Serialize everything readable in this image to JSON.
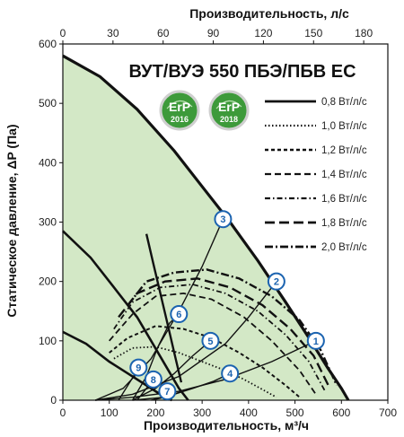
{
  "chart_data": {
    "type": "line",
    "title": "ВУТ/ВУЭ 550 ПБЭ/ПБВ ЕС",
    "xlabel": "Производительность, м³/ч",
    "ylabel": "Статическое давление, ΔP (Па)",
    "x2label": "Производительность, л/с",
    "xlim": [
      0,
      700
    ],
    "ylim": [
      0,
      600
    ],
    "x2lim": [
      0,
      194.44
    ],
    "xticks": [
      "0",
      "100",
      "200",
      "300",
      "400",
      "500",
      "600",
      "700"
    ],
    "yticks": [
      "0",
      "100",
      "200",
      "300",
      "400",
      "500",
      "600"
    ],
    "x2ticks": [
      "0",
      "30",
      "60",
      "90",
      "120",
      "150",
      "180"
    ],
    "grid": false,
    "badges": [
      {
        "label": "ErP",
        "year": "2016"
      },
      {
        "label": "ErP",
        "year": "2018"
      }
    ],
    "legend_position": "top-right",
    "series": [
      {
        "name": "0,8 Вт/л/с",
        "style": "solid",
        "x": [
          180,
          195,
          210,
          225,
          240,
          255
        ],
        "y": [
          280,
          230,
          180,
          130,
          80,
          30
        ]
      },
      {
        "name": "1,0 Вт/л/с",
        "style": "dotted",
        "x": [
          110,
          150,
          200,
          250,
          300,
          350,
          390,
          430,
          460
        ],
        "y": [
          70,
          88,
          90,
          80,
          65,
          50,
          35,
          18,
          5
        ]
      },
      {
        "name": "1,2 Вт/л/с",
        "style": "dashed",
        "x": [
          100,
          140,
          200,
          260,
          320,
          380,
          430,
          480,
          510
        ],
        "y": [
          80,
          105,
          125,
          120,
          105,
          80,
          55,
          25,
          5
        ]
      },
      {
        "name": "1,4 Вт/л/с",
        "style": "longdash",
        "x": [
          100,
          150,
          200,
          260,
          320,
          390,
          450,
          510,
          545
        ],
        "y": [
          100,
          145,
          175,
          180,
          170,
          140,
          100,
          50,
          10
        ]
      },
      {
        "name": "1,6 Вт/л/с",
        "style": "dashdot",
        "x": [
          110,
          150,
          210,
          280,
          350,
          420,
          480,
          530,
          565
        ],
        "y": [
          120,
          165,
          190,
          195,
          180,
          150,
          110,
          65,
          15
        ]
      },
      {
        "name": "1,8 Вт/л/с",
        "style": "longdash-heavy",
        "x": [
          120,
          160,
          220,
          290,
          360,
          430,
          490,
          540,
          575
        ],
        "y": [
          140,
          180,
          200,
          205,
          190,
          160,
          120,
          75,
          20
        ]
      },
      {
        "name": "2,0 Вт/л/с",
        "style": "dashdot-heavy",
        "x": [
          140,
          180,
          240,
          310,
          380,
          450,
          510,
          555,
          590
        ],
        "y": [
          160,
          200,
          215,
          220,
          205,
          175,
          135,
          85,
          25
        ]
      }
    ],
    "boundary_curve": {
      "x": [
        0,
        80,
        160,
        240,
        300,
        360,
        420,
        480,
        530,
        570,
        600,
        615
      ],
      "y": [
        580,
        545,
        490,
        420,
        360,
        300,
        235,
        165,
        105,
        55,
        20,
        0
      ]
    },
    "speed_curves": [
      {
        "x": [
          0,
          60,
          120,
          160,
          190,
          220,
          250,
          270
        ],
        "y": [
          285,
          240,
          180,
          140,
          100,
          60,
          20,
          0
        ]
      },
      {
        "x": [
          0,
          50,
          100,
          140,
          170,
          200,
          220,
          235
        ],
        "y": [
          115,
          95,
          65,
          45,
          30,
          15,
          5,
          0
        ]
      }
    ],
    "system_curves": [
      {
        "label": "1",
        "x": [
          70,
          150,
          250,
          350,
          450,
          545
        ],
        "y": [
          0,
          5,
          15,
          35,
          65,
          100
        ],
        "mx": 545,
        "my": 100
      },
      {
        "label": "2",
        "x": [
          70,
          150,
          250,
          350,
          400,
          460
        ],
        "y": [
          0,
          10,
          40,
          95,
          140,
          200
        ],
        "mx": 460,
        "my": 200
      },
      {
        "label": "3",
        "x": [
          70,
          130,
          190,
          250,
          300,
          345
        ],
        "y": [
          0,
          20,
          70,
          150,
          225,
          305
        ],
        "mx": 345,
        "my": 305
      },
      {
        "label": "4",
        "x": [
          150,
          220,
          280,
          325,
          360
        ],
        "y": [
          0,
          5,
          20,
          32,
          45
        ],
        "mx": 360,
        "my": 45
      },
      {
        "label": "5",
        "x": [
          150,
          200,
          240,
          280,
          318
        ],
        "y": [
          0,
          20,
          45,
          75,
          100
        ],
        "mx": 318,
        "my": 100
      },
      {
        "label": "6",
        "x": [
          150,
          180,
          205,
          230,
          250
        ],
        "y": [
          0,
          40,
          90,
          130,
          145
        ],
        "mx": 250,
        "my": 145
      },
      {
        "label": "7",
        "x": [
          190,
          220,
          240,
          255
        ],
        "y": [
          0,
          5,
          10,
          15
        ],
        "mx": 225,
        "my": 15
      },
      {
        "label": "8",
        "x": [
          160,
          175,
          190,
          200
        ],
        "y": [
          0,
          15,
          30,
          35
        ],
        "mx": 195,
        "my": 35
      },
      {
        "label": "9",
        "x": [
          120,
          140,
          160,
          170
        ],
        "y": [
          0,
          25,
          50,
          55
        ],
        "mx": 163,
        "my": 55
      }
    ]
  }
}
